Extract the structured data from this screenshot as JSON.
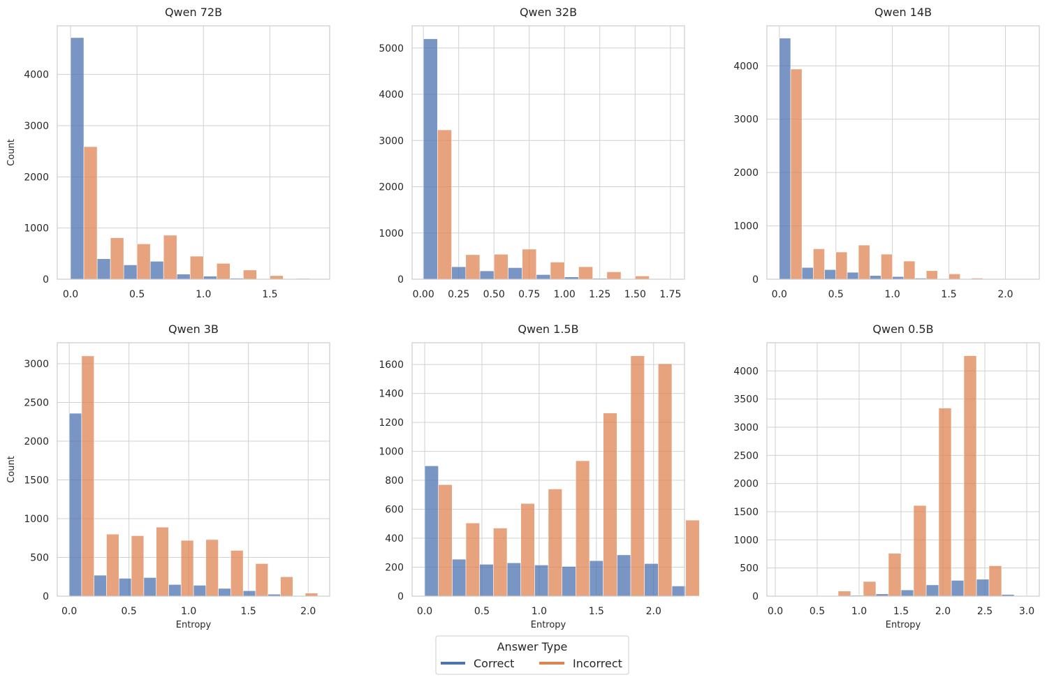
{
  "colors": {
    "correct": "#4c72b0",
    "incorrect": "#dd8452"
  },
  "legend": {
    "title": "Answer Type",
    "entries": [
      {
        "label": "Correct",
        "color": "#4c72b0"
      },
      {
        "label": "Incorrect",
        "color": "#dd8452"
      }
    ]
  },
  "chart_data": [
    {
      "type": "bar",
      "title": "Qwen 72B",
      "xlabel": "",
      "ylabel": "Count",
      "xlim": [
        -0.1,
        1.95
      ],
      "ylim": [
        0,
        4950
      ],
      "xticks": [
        0.0,
        0.5,
        1.0,
        1.5
      ],
      "xtick_labels": [
        "0.0",
        "0.5",
        "1.0",
        "1.5"
      ],
      "yticks": [
        0,
        1000,
        2000,
        3000,
        4000
      ],
      "grid": true,
      "bin_start": 0.0,
      "bin_width": 0.1,
      "series": [
        {
          "name": "Correct",
          "bins": [
            0,
            2,
            4,
            6,
            8,
            10,
            12,
            14,
            16,
            18
          ],
          "values": [
            4720,
            400,
            280,
            350,
            100,
            60,
            20,
            5,
            3,
            1
          ]
        },
        {
          "name": "Incorrect",
          "bins": [
            1,
            3,
            5,
            7,
            9,
            11,
            13,
            15,
            17
          ],
          "values": [
            2590,
            810,
            690,
            860,
            450,
            310,
            180,
            70,
            15
          ]
        }
      ]
    },
    {
      "type": "bar",
      "title": "Qwen 32B",
      "xlabel": "",
      "ylabel": "",
      "xlim": [
        -0.08,
        1.85
      ],
      "ylim": [
        0,
        5480
      ],
      "xticks": [
        0.0,
        0.25,
        0.5,
        0.75,
        1.0,
        1.25,
        1.5,
        1.75
      ],
      "xtick_labels": [
        "0.00",
        "0.25",
        "0.50",
        "0.75",
        "1.00",
        "1.25",
        "1.50",
        "1.75"
      ],
      "yticks": [
        0,
        1000,
        2000,
        3000,
        4000,
        5000
      ],
      "grid": true,
      "bin_start": 0.0,
      "bin_width": 0.1,
      "series": [
        {
          "name": "Correct",
          "bins": [
            0,
            2,
            4,
            6,
            8,
            10,
            12,
            14,
            16
          ],
          "values": [
            5200,
            270,
            180,
            250,
            100,
            50,
            20,
            5,
            2
          ]
        },
        {
          "name": "Incorrect",
          "bins": [
            1,
            3,
            5,
            7,
            9,
            11,
            13,
            15,
            17
          ],
          "values": [
            3230,
            530,
            540,
            650,
            370,
            270,
            160,
            70,
            10
          ]
        }
      ]
    },
    {
      "type": "bar",
      "title": "Qwen 14B",
      "xlabel": "",
      "ylabel": "",
      "xlim": [
        -0.11,
        2.3
      ],
      "ylim": [
        0,
        4750
      ],
      "xticks": [
        0.0,
        0.5,
        1.0,
        1.5,
        2.0
      ],
      "xtick_labels": [
        "0.0",
        "0.5",
        "1.0",
        "1.5",
        "2.0"
      ],
      "yticks": [
        0,
        1000,
        2000,
        3000,
        4000
      ],
      "grid": true,
      "bin_start": 0.0,
      "bin_width": 0.1,
      "series": [
        {
          "name": "Correct",
          "bins": [
            0,
            2,
            4,
            6,
            8,
            10,
            12,
            14,
            16,
            18
          ],
          "values": [
            4520,
            220,
            180,
            130,
            70,
            50,
            20,
            5,
            3,
            1
          ]
        },
        {
          "name": "Incorrect",
          "bins": [
            1,
            3,
            5,
            7,
            9,
            11,
            13,
            15,
            17,
            19
          ],
          "values": [
            3940,
            570,
            510,
            640,
            470,
            340,
            160,
            100,
            20,
            5
          ]
        }
      ]
    },
    {
      "type": "bar",
      "title": "Qwen 3B",
      "xlabel": "Entropy",
      "ylabel": "Count",
      "xlim": [
        -0.1,
        2.18
      ],
      "ylim": [
        0,
        3270
      ],
      "xticks": [
        0.0,
        0.5,
        1.0,
        1.5,
        2.0
      ],
      "xtick_labels": [
        "0.0",
        "0.5",
        "1.0",
        "1.5",
        "2.0"
      ],
      "yticks": [
        0,
        500,
        1000,
        1500,
        2000,
        2500,
        3000
      ],
      "grid": true,
      "bin_start": 0.0,
      "bin_width": 0.104,
      "series": [
        {
          "name": "Correct",
          "bins": [
            0,
            2,
            4,
            6,
            8,
            10,
            12,
            14,
            16,
            18
          ],
          "values": [
            2360,
            270,
            230,
            240,
            150,
            140,
            100,
            70,
            25,
            3
          ]
        },
        {
          "name": "Incorrect",
          "bins": [
            1,
            3,
            5,
            7,
            9,
            11,
            13,
            15,
            17,
            19
          ],
          "values": [
            3100,
            800,
            780,
            890,
            720,
            730,
            590,
            420,
            250,
            40
          ]
        }
      ]
    },
    {
      "type": "bar",
      "title": "Qwen 1.5B",
      "xlabel": "Entropy",
      "ylabel": "",
      "xlim": [
        -0.11,
        2.27
      ],
      "ylim": [
        0,
        1750
      ],
      "xticks": [
        0.0,
        0.5,
        1.0,
        1.5,
        2.0
      ],
      "xtick_labels": [
        "0.0",
        "0.5",
        "1.0",
        "1.5",
        "2.0"
      ],
      "yticks": [
        0,
        200,
        400,
        600,
        800,
        1000,
        1200,
        1400,
        1600
      ],
      "grid": true,
      "bin_start": 0.0,
      "bin_width": 0.12,
      "series": [
        {
          "name": "Correct",
          "bins": [
            0,
            2,
            4,
            6,
            8,
            10,
            12,
            14,
            16,
            18
          ],
          "values": [
            900,
            255,
            220,
            230,
            215,
            205,
            245,
            285,
            225,
            70
          ]
        },
        {
          "name": "Incorrect",
          "bins": [
            1,
            3,
            5,
            7,
            9,
            11,
            13,
            15,
            17,
            19
          ],
          "values": [
            770,
            505,
            470,
            640,
            740,
            935,
            1265,
            1660,
            1605,
            525
          ]
        }
      ]
    },
    {
      "type": "bar",
      "title": "Qwen 0.5B",
      "xlabel": "Entropy",
      "ylabel": "",
      "xlim": [
        -0.1,
        3.15
      ],
      "ylim": [
        0,
        4500
      ],
      "xticks": [
        0.0,
        0.5,
        1.0,
        1.5,
        2.0,
        2.5,
        3.0
      ],
      "xtick_labels": [
        "0.0",
        "0.5",
        "1.0",
        "1.5",
        "2.0",
        "2.5",
        "3.0"
      ],
      "yticks": [
        0,
        500,
        1000,
        1500,
        2000,
        2500,
        3000,
        3500,
        4000
      ],
      "grid": true,
      "bin_start": 0.0,
      "bin_width": 0.15,
      "series": [
        {
          "name": "Correct",
          "bins": [
            0,
            2,
            4,
            6,
            8,
            10,
            12,
            14,
            16,
            18,
            20
          ],
          "values": [
            0,
            2,
            5,
            15,
            40,
            110,
            200,
            280,
            300,
            30,
            2
          ]
        },
        {
          "name": "Incorrect",
          "bins": [
            1,
            3,
            5,
            7,
            9,
            11,
            13,
            15,
            17,
            19
          ],
          "values": [
            3,
            10,
            90,
            260,
            760,
            1610,
            3340,
            4270,
            540,
            10
          ]
        }
      ]
    }
  ]
}
